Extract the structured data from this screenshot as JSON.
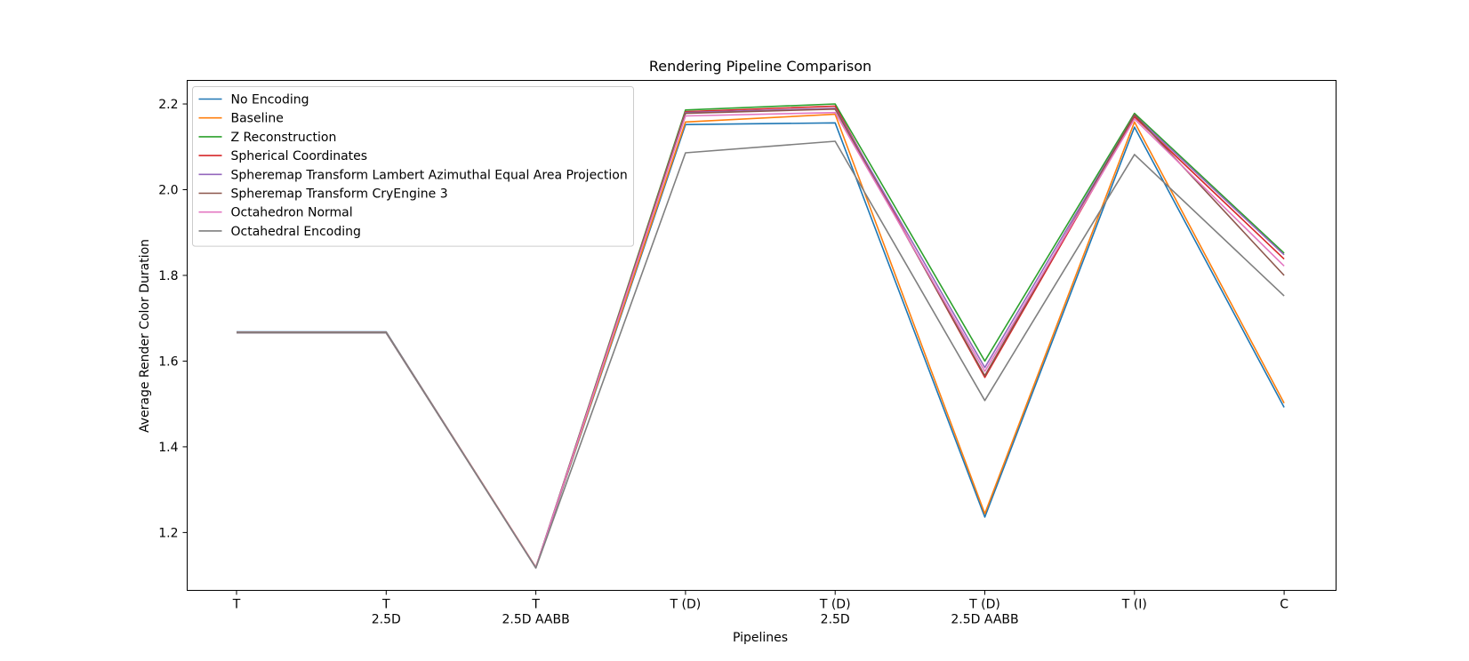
{
  "chart_data": {
    "type": "line",
    "title": "Rendering Pipeline Comparison",
    "xlabel": "Pipelines",
    "ylabel": "Average Render Color Duration",
    "categories": [
      [
        "T"
      ],
      [
        "T",
        "2.5D"
      ],
      [
        "T",
        "2.5D AABB"
      ],
      [
        "T (D)"
      ],
      [
        "T (D)",
        "2.5D"
      ],
      [
        "T (D)",
        "2.5D AABB"
      ],
      [
        "T (I)"
      ],
      [
        "C"
      ]
    ],
    "ylim": [
      1.065,
      2.255
    ],
    "yticks": [
      1.2,
      1.4,
      1.6,
      1.8,
      2.0,
      2.2
    ],
    "ytick_labels": [
      "1.2",
      "1.4",
      "1.6",
      "1.8",
      "2.0",
      "2.2"
    ],
    "grid": false,
    "legend_position": "top-left",
    "series": [
      {
        "name": "No Encoding",
        "color": "#1f77b4",
        "values": [
          1.668,
          1.668,
          1.118,
          2.152,
          2.156,
          1.236,
          2.146,
          1.492
        ]
      },
      {
        "name": "Baseline",
        "color": "#ff7f0e",
        "values": [
          1.667,
          1.667,
          1.119,
          2.158,
          2.176,
          1.244,
          2.158,
          1.502
        ]
      },
      {
        "name": "Z Reconstruction",
        "color": "#2ca02c",
        "values": [
          1.666,
          1.666,
          1.118,
          2.186,
          2.2,
          1.6,
          2.178,
          1.852
        ]
      },
      {
        "name": "Spherical Coordinates",
        "color": "#d62728",
        "values": [
          1.666,
          1.666,
          1.118,
          2.182,
          2.195,
          1.562,
          2.17,
          1.838
        ]
      },
      {
        "name": "Spheremap Transform Lambert Azimuthal Equal Area Projection",
        "color": "#9467bd",
        "values": [
          1.666,
          1.666,
          1.118,
          2.18,
          2.19,
          1.585,
          2.174,
          1.848
        ]
      },
      {
        "name": "Spheremap Transform CryEngine 3",
        "color": "#8c564b",
        "values": [
          1.666,
          1.666,
          1.118,
          2.178,
          2.188,
          1.566,
          2.175,
          1.8
        ]
      },
      {
        "name": "Octahedron Normal",
        "color": "#e377c2",
        "values": [
          1.666,
          1.666,
          1.118,
          2.172,
          2.18,
          1.576,
          2.165,
          1.822
        ]
      },
      {
        "name": "Octahedral Encoding",
        "color": "#7f7f7f",
        "values": [
          1.666,
          1.666,
          1.117,
          2.086,
          2.113,
          1.508,
          2.082,
          1.752
        ]
      }
    ]
  }
}
